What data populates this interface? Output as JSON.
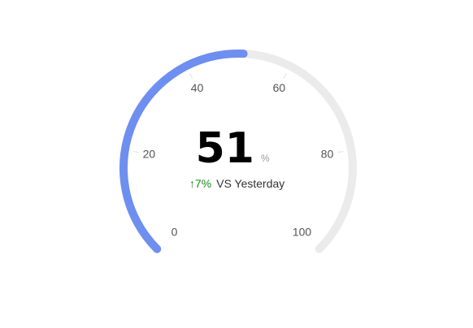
{
  "chart_data": {
    "type": "gauge",
    "value": 51,
    "min": 0,
    "max": 100,
    "unit": "%",
    "ticks": [
      "0",
      "20",
      "40",
      "60",
      "80",
      "100"
    ],
    "tick_values": [
      0,
      20,
      40,
      60,
      80,
      100
    ],
    "comparison": {
      "arrow": "↑",
      "change": "7%",
      "label": "VS Yesterday"
    },
    "colors": {
      "progress": "#6e8ff0",
      "track": "#ebebeb",
      "increase": "#1a8a1a",
      "label": "#333333"
    }
  }
}
